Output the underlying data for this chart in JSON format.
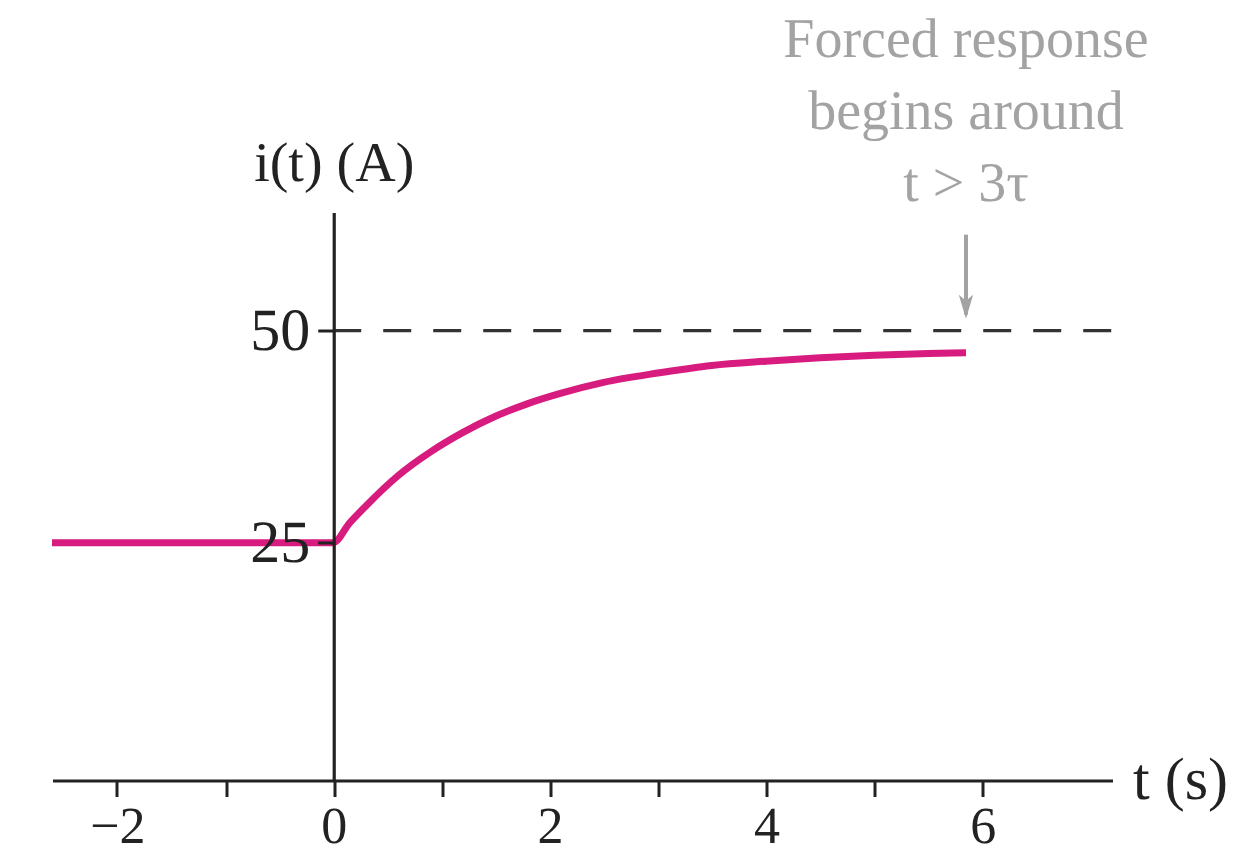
{
  "chart_data": {
    "type": "line",
    "xlabel": "t (s)",
    "ylabel": "i(t) (A)",
    "xlim": [
      -2.6,
      7.2
    ],
    "ylim": [
      -3,
      64
    ],
    "xticks": [
      -2,
      {
        "value": -1,
        "label": null
      },
      0,
      {
        "value": 1,
        "label": null
      },
      2,
      {
        "value": 3,
        "label": null
      },
      4,
      {
        "value": 5,
        "label": null
      },
      6
    ],
    "yticks": [
      25,
      50
    ],
    "series": [
      {
        "color": "#d81b7f",
        "x": [
          -2.6,
          0,
          0.15,
          0.3,
          0.6,
          0.9,
          1.2,
          1.5,
          1.8,
          2.1,
          2.5,
          3.0,
          3.5,
          4.0,
          4.5,
          5.0,
          5.5,
          5.85
        ],
        "values": [
          25,
          25,
          27.3,
          29.3,
          32.9,
          35.7,
          38.0,
          39.9,
          41.4,
          42.6,
          43.9,
          45.0,
          45.9,
          46.4,
          46.8,
          47.1,
          47.3,
          47.4
        ]
      }
    ],
    "ref_lines": [
      {
        "axis": "y",
        "value": 50,
        "line_style": "dashed",
        "color": "#333333"
      }
    ],
    "annotations": [
      {
        "text": "Forced response\nbegins around\nt > 3τ",
        "x": 5.85,
        "y": 50
      }
    ],
    "line_style": "solid"
  }
}
